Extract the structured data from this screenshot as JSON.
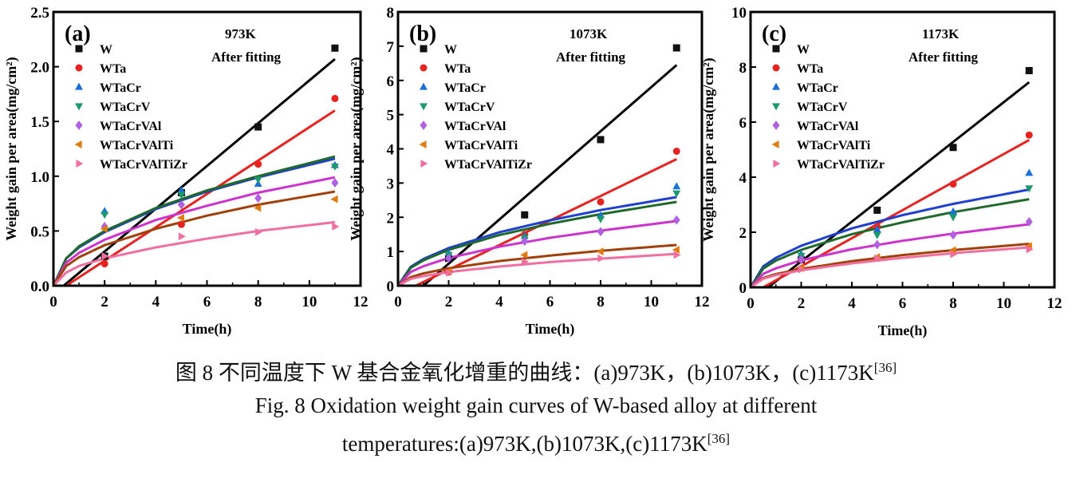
{
  "colors": {
    "W": "#111111",
    "WTa": "#e8231f",
    "WTaCr": "#1a6fd8",
    "WTaCrV": "#1a9a6a",
    "WTaCrVAl": "#b060e0",
    "WTaCrVAlTi": "#e07b10",
    "WTaCrVAlTiZr": "#f06fa0"
  },
  "fit_colors": {
    "W": "#000000",
    "WTa": "#e8231f",
    "WTaCr": "#1f3fd0",
    "WTaCrV": "#1f6a2a",
    "WTaCrVAl": "#cc33cc",
    "WTaCrVAlTi": "#a0400a",
    "WTaCrVAlTiZr": "#f06fa0"
  },
  "markers": {
    "W": "square",
    "WTa": "circle",
    "WTaCr": "triangle-up",
    "WTaCrV": "triangle-down",
    "WTaCrVAl": "diamond",
    "WTaCrVAlTi": "triangle-left",
    "WTaCrVAlTiZr": "triangle-right"
  },
  "chart_data": [
    {
      "type": "scatter",
      "panel": "(a)",
      "temperature": "973K",
      "note": "After fitting",
      "xlabel": "Time(h)",
      "ylabel": "Weight gain per area(mg/cm²)",
      "xlim": [
        0,
        12
      ],
      "ylim": [
        0,
        2.5
      ],
      "xticks": [
        "0",
        "2",
        "4",
        "6",
        "8",
        "10",
        "12"
      ],
      "yticks": [
        "0.0",
        "0.5",
        "1.0",
        "1.5",
        "2.0",
        "2.5"
      ],
      "x": [
        2,
        5,
        8,
        11
      ],
      "series": [
        {
          "name": "W",
          "values": [
            0.27,
            0.85,
            1.45,
            2.17
          ],
          "fit": {
            "x": [
              0.4,
              11
            ],
            "y": [
              0,
              2.07
            ]
          }
        },
        {
          "name": "WTa",
          "values": [
            0.2,
            0.56,
            1.11,
            1.71
          ],
          "fit": {
            "x": [
              0.5,
              11
            ],
            "y": [
              0,
              1.6
            ]
          }
        },
        {
          "name": "WTaCr",
          "values": [
            0.68,
            0.87,
            0.93,
            1.1
          ],
          "fit": {
            "x": [
              0,
              0.5,
              1,
              2,
              4,
              6,
              8,
              11
            ],
            "y": [
              0,
              0.25,
              0.35,
              0.49,
              0.7,
              0.86,
              0.99,
              1.16
            ]
          }
        },
        {
          "name": "WTaCrV",
          "values": [
            0.65,
            0.83,
            0.97,
            1.09
          ],
          "fit": {
            "x": [
              0,
              0.5,
              1,
              2,
              4,
              6,
              8,
              11
            ],
            "y": [
              0,
              0.25,
              0.36,
              0.5,
              0.71,
              0.87,
              1.0,
              1.18
            ]
          }
        },
        {
          "name": "WTaCrVAl",
          "values": [
            0.54,
            0.74,
            0.8,
            0.94
          ],
          "fit": {
            "x": [
              0,
              0.5,
              1,
              2,
              4,
              6,
              8,
              11
            ],
            "y": [
              0,
              0.21,
              0.3,
              0.42,
              0.6,
              0.73,
              0.85,
              0.99
            ]
          }
        },
        {
          "name": "WTaCrVAlTi",
          "values": [
            0.52,
            0.62,
            0.71,
            0.79
          ],
          "fit": {
            "x": [
              0,
              0.5,
              1,
              2,
              4,
              6,
              8,
              11
            ],
            "y": [
              0,
              0.18,
              0.26,
              0.37,
              0.52,
              0.64,
              0.74,
              0.86
            ]
          }
        },
        {
          "name": "WTaCrVAlTiZr",
          "values": [
            0.27,
            0.45,
            0.49,
            0.54
          ],
          "fit": {
            "x": [
              0,
              0.5,
              1,
              2,
              4,
              6,
              8,
              11
            ],
            "y": [
              0,
              0.12,
              0.18,
              0.25,
              0.35,
              0.43,
              0.5,
              0.58
            ]
          }
        }
      ]
    },
    {
      "type": "scatter",
      "panel": "(b)",
      "temperature": "1073K",
      "note": "After fitting",
      "xlabel": "Time(h)",
      "ylabel": "Weight gain per area(mg/cm²)",
      "xlim": [
        0,
        12
      ],
      "ylim": [
        0,
        8
      ],
      "xticks": [
        "0",
        "2",
        "4",
        "6",
        "8",
        "10",
        "12"
      ],
      "yticks": [
        "0",
        "1",
        "2",
        "3",
        "4",
        "5",
        "6",
        "7",
        "8"
      ],
      "x": [
        2,
        5,
        8,
        11
      ],
      "series": [
        {
          "name": "W",
          "values": [
            0.8,
            2.07,
            4.27,
            6.95
          ],
          "fit": {
            "x": [
              1.0,
              11
            ],
            "y": [
              0,
              6.45
            ]
          }
        },
        {
          "name": "WTa",
          "values": [
            0.4,
            1.5,
            2.45,
            3.93
          ],
          "fit": {
            "x": [
              0.7,
              11
            ],
            "y": [
              0,
              3.7
            ]
          }
        },
        {
          "name": "WTaCr",
          "values": [
            0.95,
            1.45,
            2.05,
            2.9
          ],
          "fit": {
            "x": [
              0,
              0.5,
              1,
              2,
              4,
              6,
              8,
              11
            ],
            "y": [
              0,
              0.55,
              0.78,
              1.1,
              1.56,
              1.91,
              2.21,
              2.59
            ]
          }
        },
        {
          "name": "WTaCrV",
          "values": [
            0.9,
            1.4,
            1.95,
            2.7
          ],
          "fit": {
            "x": [
              0,
              0.5,
              1,
              2,
              4,
              6,
              8,
              11
            ],
            "y": [
              0,
              0.52,
              0.74,
              1.05,
              1.48,
              1.81,
              2.09,
              2.45
            ]
          }
        },
        {
          "name": "WTaCrVAl",
          "values": [
            0.8,
            1.3,
            1.58,
            1.92
          ],
          "fit": {
            "x": [
              0,
              0.5,
              1,
              2,
              4,
              6,
              8,
              11
            ],
            "y": [
              0,
              0.4,
              0.57,
              0.81,
              1.14,
              1.4,
              1.61,
              1.89
            ]
          }
        },
        {
          "name": "WTaCrVAlTi",
          "values": [
            0.42,
            0.9,
            1.0,
            1.05
          ],
          "fit": {
            "x": [
              0,
              0.5,
              1,
              2,
              4,
              6,
              8,
              11
            ],
            "y": [
              0,
              0.25,
              0.36,
              0.51,
              0.72,
              0.88,
              1.02,
              1.19
            ]
          }
        },
        {
          "name": "WTaCrVAlTiZr",
          "values": [
            0.38,
            0.7,
            0.8,
            0.9
          ],
          "fit": {
            "x": [
              0,
              0.5,
              1,
              2,
              4,
              6,
              8,
              11
            ],
            "y": [
              0,
              0.2,
              0.28,
              0.4,
              0.56,
              0.69,
              0.79,
              0.93
            ]
          }
        }
      ]
    },
    {
      "type": "scatter",
      "panel": "(c)",
      "temperature": "1173K",
      "note": "After fitting",
      "xlabel": "Time(h)",
      "ylabel": "Weight gain per area(mg/cm²)",
      "xlim": [
        0,
        12
      ],
      "ylim": [
        0,
        10
      ],
      "xticks": [
        "0",
        "2",
        "4",
        "6",
        "8",
        "10",
        "12"
      ],
      "yticks": [
        "0",
        "2",
        "4",
        "6",
        "8",
        "10"
      ],
      "x": [
        2,
        5,
        8,
        11
      ],
      "series": [
        {
          "name": "W",
          "values": [
            1.0,
            2.8,
            5.08,
            7.87
          ],
          "fit": {
            "x": [
              0.7,
              11
            ],
            "y": [
              0,
              7.45
            ]
          }
        },
        {
          "name": "WTa",
          "values": [
            1.0,
            2.2,
            3.75,
            5.53
          ],
          "fit": {
            "x": [
              0.5,
              11
            ],
            "y": [
              0,
              5.35
            ]
          }
        },
        {
          "name": "WTaCr",
          "values": [
            1.2,
            2.1,
            2.75,
            4.15
          ],
          "fit": {
            "x": [
              0,
              0.5,
              1,
              2,
              4,
              6,
              8,
              11
            ],
            "y": [
              0,
              0.76,
              1.07,
              1.51,
              2.14,
              2.62,
              3.03,
              3.55
            ]
          }
        },
        {
          "name": "WTaCrV",
          "values": [
            1.15,
            1.9,
            2.55,
            3.6
          ],
          "fit": {
            "x": [
              0,
              0.5,
              1,
              2,
              4,
              6,
              8,
              11
            ],
            "y": [
              0,
              0.68,
              0.97,
              1.36,
              1.93,
              2.36,
              2.73,
              3.2
            ]
          }
        },
        {
          "name": "WTaCrVAl",
          "values": [
            1.0,
            1.55,
            1.9,
            2.38
          ],
          "fit": {
            "x": [
              0,
              0.5,
              1,
              2,
              4,
              6,
              8,
              11
            ],
            "y": [
              0,
              0.49,
              0.69,
              0.98,
              1.38,
              1.69,
              1.95,
              2.29
            ]
          }
        },
        {
          "name": "WTaCrVAlTi",
          "values": [
            0.7,
            1.1,
            1.35,
            1.5
          ],
          "fit": {
            "x": [
              0,
              0.5,
              1,
              2,
              4,
              6,
              8,
              11
            ],
            "y": [
              0,
              0.34,
              0.48,
              0.67,
              0.95,
              1.17,
              1.35,
              1.58
            ]
          }
        },
        {
          "name": "WTaCrVAlTiZr",
          "values": [
            0.65,
            1.05,
            1.2,
            1.38
          ],
          "fit": {
            "x": [
              0,
              0.5,
              1,
              2,
              4,
              6,
              8,
              11
            ],
            "y": [
              0,
              0.31,
              0.44,
              0.62,
              0.87,
              1.07,
              1.24,
              1.45
            ]
          }
        }
      ]
    }
  ],
  "caption": {
    "zh": "图 8 不同温度下 W 基合金氧化增重的曲线：(a)973K，(b)1073K，(c)1173K",
    "zh_ref": "[36]",
    "en_line1": "Fig. 8 Oxidation weight gain curves of W-based alloy at different",
    "en_line2": "temperatures:(a)973K,(b)1073K,(c)1173K",
    "en_ref": "[36]"
  }
}
